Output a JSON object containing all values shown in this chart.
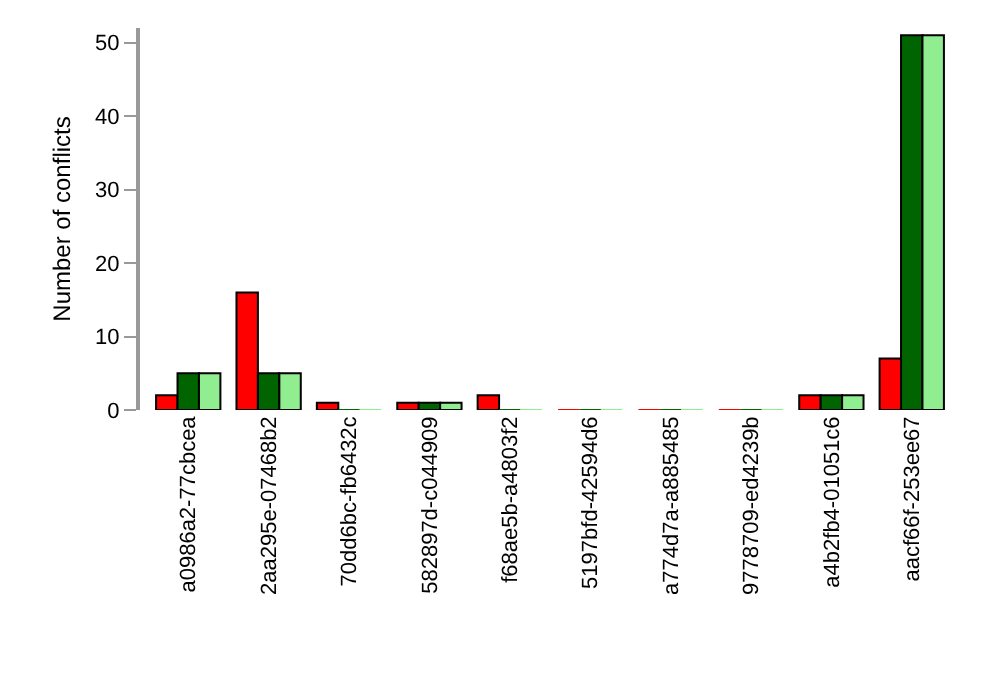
{
  "chart_data": {
    "type": "bar",
    "ylabel": "Number of conflicts",
    "categories": [
      "a0986a2-77cbcea",
      "2aa295e-07468b2",
      "70dd6bc-fb6432c",
      "582897d-c044909",
      "f68ae5b-a4803f2",
      "5197bfd-42594d6",
      "a774d7a-a885485",
      "9778709-ed4239b",
      "a4b2fb4-01051c6",
      "aacf66f-253ee67"
    ],
    "series": [
      {
        "color": "#ff0000",
        "values": [
          2,
          16,
          1,
          1,
          2,
          0,
          0,
          0,
          2,
          7
        ]
      },
      {
        "color": "#006400",
        "values": [
          5,
          5,
          0,
          1,
          0,
          0,
          0,
          0,
          2,
          51
        ]
      },
      {
        "color": "#90ee90",
        "values": [
          5,
          5,
          0,
          1,
          0,
          0,
          0,
          0,
          2,
          51
        ]
      }
    ],
    "ylim": [
      0,
      52
    ],
    "yticks": [
      0,
      10,
      20,
      30,
      40,
      50
    ],
    "grid": false
  }
}
